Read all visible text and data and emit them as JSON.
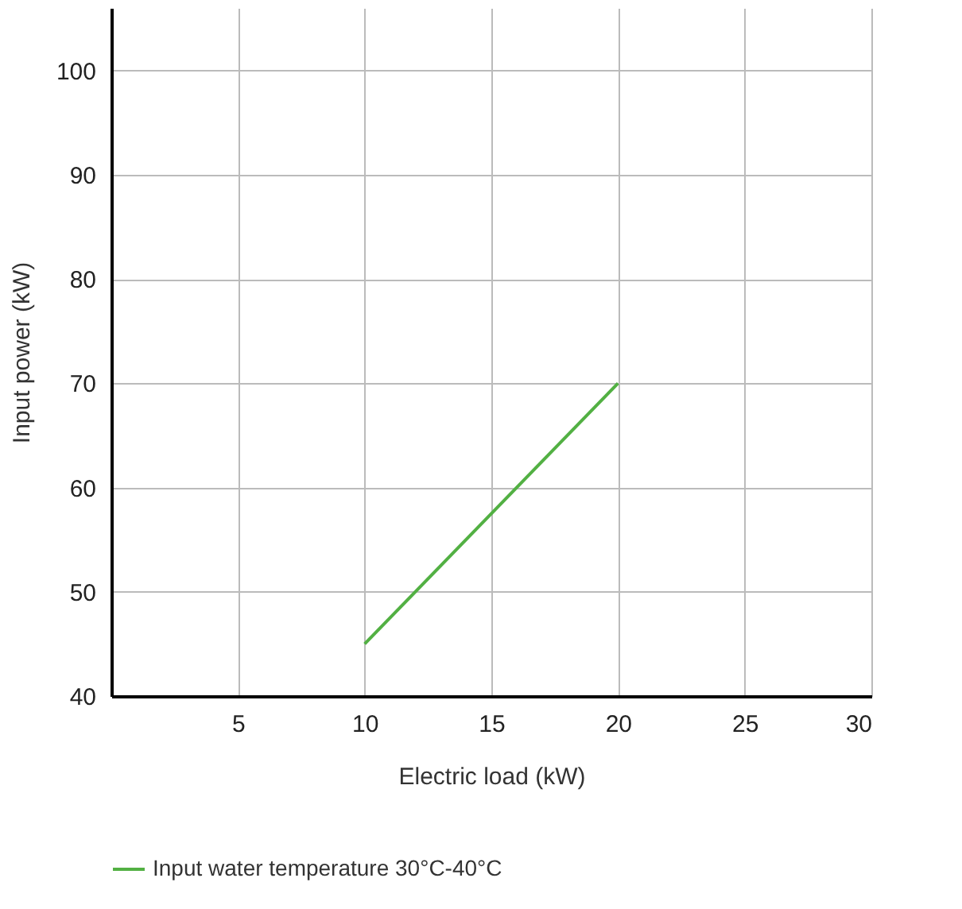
{
  "chart_data": {
    "type": "line",
    "xlabel": "Electric load (kW)",
    "ylabel": "Input power (kW)",
    "x": [
      10,
      20
    ],
    "series": [
      {
        "name": "Input water temperature 30°C-40°C",
        "color": "#52b043",
        "values": [
          45,
          70
        ]
      }
    ],
    "xlim": [
      0,
      30
    ],
    "xticks": [
      {
        "value": 0,
        "label": null
      },
      5,
      10,
      15,
      20,
      25,
      30
    ],
    "ylim": [
      40,
      106
    ],
    "yticks": [
      40,
      50,
      60,
      70,
      80,
      90,
      100
    ],
    "grid": true,
    "legend": "bottom",
    "marker": "none",
    "line_style": "solid"
  }
}
